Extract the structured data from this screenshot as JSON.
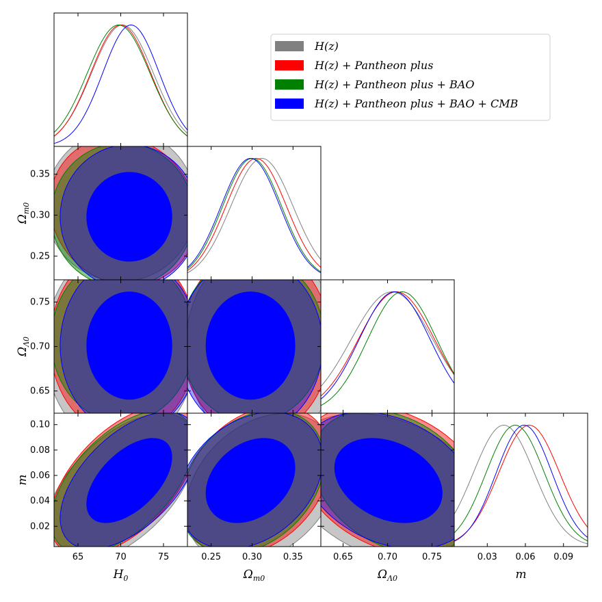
{
  "chart_data": {
    "type": "triangle-corner-plot",
    "parameters": [
      "H0",
      "Om",
      "OL",
      "m"
    ],
    "axis_labels": {
      "H0": {
        "base": "H",
        "sub": "0"
      },
      "Om": {
        "base": "Ω",
        "sub": "m0"
      },
      "OL": {
        "base": "Ω",
        "sub": "Λ0"
      },
      "m": {
        "base": "m",
        "sub": ""
      }
    },
    "ranges": {
      "H0": [
        62.2,
        77.8
      ],
      "Om": [
        0.221,
        0.384
      ],
      "OL": [
        0.625,
        0.775
      ],
      "m": [
        0.004,
        0.109
      ]
    },
    "ticks": {
      "H0": [
        65,
        70,
        75
      ],
      "Om": [
        0.25,
        0.3,
        0.35
      ],
      "OL": [
        0.65,
        0.7,
        0.75
      ],
      "m": [
        0.03,
        0.06,
        0.09
      ]
    },
    "tick_labels": {
      "H0": [
        "65",
        "70",
        "75"
      ],
      "Om": [
        "0.25",
        "0.30",
        "0.35"
      ],
      "OL": [
        "0.65",
        "0.70",
        "0.75"
      ],
      "m": [
        "0.03",
        "0.06",
        "0.09"
      ]
    },
    "y_ticks": {
      "Om": [
        0.25,
        0.3,
        0.35
      ],
      "OL": [
        0.65,
        0.7,
        0.75
      ],
      "m": [
        0.02,
        0.04,
        0.06,
        0.08,
        0.1
      ]
    },
    "y_tick_labels": {
      "Om": [
        "0.25",
        "0.30",
        "0.35"
      ],
      "OL": [
        "0.65",
        "0.70",
        "0.75"
      ],
      "m": [
        "0.02",
        "0.04",
        "0.06",
        "0.08",
        "0.10"
      ]
    },
    "legend": {
      "placement": "top-right"
    },
    "series": [
      {
        "name": "H(z)",
        "color": "#808080",
        "fill_alpha": 0.45,
        "inner_filled": false,
        "means": {
          "H0": 70.0,
          "Om": 0.312,
          "OL": 0.7,
          "m": 0.05
        },
        "sigmas": {
          "H0": 3.6,
          "Om": 0.038,
          "OL": 0.046,
          "m": 0.024
        },
        "peaks": {
          "H0": [
            70.2
          ],
          "Om": [
            0.312
          ],
          "OL": [
            0.705
          ],
          "m": [
            0.043
          ]
        },
        "correlations": {
          "H0-Om": 0.0,
          "H0-OL": 0.0,
          "H0-m": 0.55,
          "Om-OL": 0.0,
          "Om-m": 0.3,
          "OL-m": -0.3
        }
      },
      {
        "name": "H(z)+Pantheon plus",
        "color": "#ff0000",
        "fill_alpha": 0.45,
        "inner_filled": false,
        "means": {
          "H0": 70.3,
          "Om": 0.305,
          "OL": 0.705,
          "m": 0.056
        },
        "sigmas": {
          "H0": 3.5,
          "Om": 0.037,
          "OL": 0.043,
          "m": 0.024
        },
        "peaks": {
          "H0": [
            70.0
          ],
          "Om": [
            0.305
          ],
          "OL": [
            0.71
          ],
          "m": [
            0.063
          ]
        },
        "correlations": {
          "H0-Om": -0.1,
          "H0-OL": 0.0,
          "H0-m": 0.55,
          "Om-OL": 0.0,
          "Om-m": 0.3,
          "OL-m": -0.3
        }
      },
      {
        "name": "H(z)+Pantheon plus+BAO",
        "color": "#008000",
        "fill_alpha": 0.45,
        "inner_filled": false,
        "means": {
          "H0": 70.2,
          "Om": 0.3,
          "OL": 0.708,
          "m": 0.055
        },
        "sigmas": {
          "H0": 3.4,
          "Om": 0.036,
          "OL": 0.038,
          "m": 0.023
        },
        "peaks": {
          "H0": [
            68.5,
            71.0
          ],
          "Om": [
            0.3
          ],
          "OL": [
            0.708,
            0.725
          ],
          "m": [
            0.052
          ]
        },
        "correlations": {
          "H0-Om": 0.0,
          "H0-OL": 0.0,
          "H0-m": 0.55,
          "Om-OL": 0.0,
          "Om-m": 0.3,
          "OL-m": -0.3
        }
      },
      {
        "name": "H(z)+Pantheon plus+BAO+CMB",
        "color": "#0000ff",
        "fill_alpha": 0.38,
        "inner_filled": true,
        "means": {
          "H0": 71.0,
          "Om": 0.298,
          "OL": 0.701,
          "m": 0.056
        },
        "sigmas": {
          "H0": 3.3,
          "Om": 0.036,
          "OL": 0.04,
          "m": 0.022
        },
        "peaks": {
          "H0": [
            71.2
          ],
          "Om": [
            0.298
          ],
          "OL": [
            0.708
          ],
          "m": [
            0.059
          ]
        },
        "correlations": {
          "H0-Om": 0.0,
          "H0-OL": 0.0,
          "H0-m": 0.55,
          "Om-OL": 0.0,
          "Om-m": 0.3,
          "OL-m": -0.3
        }
      }
    ]
  }
}
